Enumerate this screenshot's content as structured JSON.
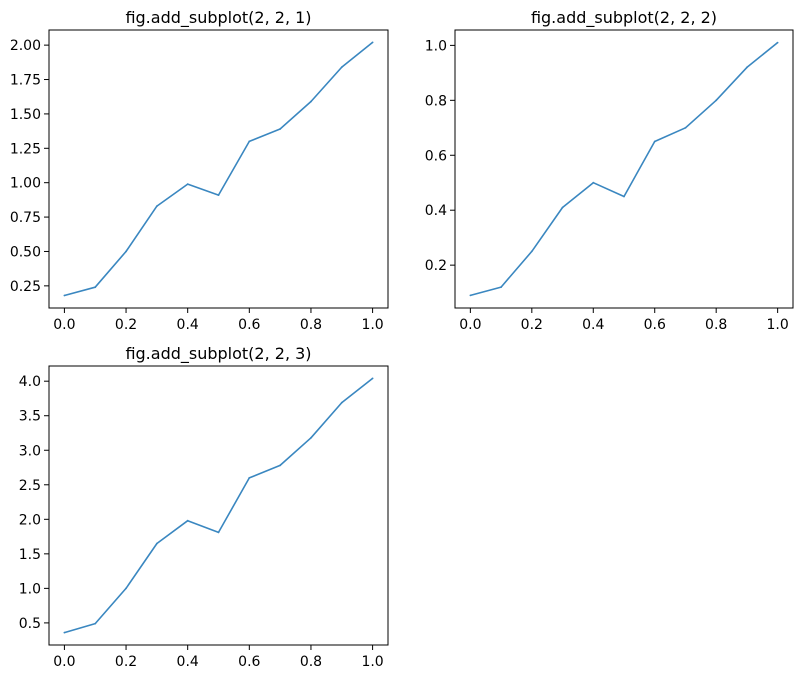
{
  "figure": {
    "background": "#ffffff",
    "line_color": "#3a87c0"
  },
  "chart_data": [
    {
      "type": "line",
      "title": "fig.add_subplot(2, 2, 1)",
      "xlabel": "",
      "ylabel": "",
      "x": [
        0.0,
        0.1,
        0.2,
        0.3,
        0.4,
        0.5,
        0.6,
        0.7,
        0.8,
        0.9,
        1.0
      ],
      "series": [
        {
          "values": [
            0.18,
            0.24,
            0.5,
            0.83,
            0.99,
            0.91,
            1.3,
            1.39,
            1.59,
            1.84,
            2.02
          ]
        }
      ],
      "xlim": [
        -0.05,
        1.05
      ],
      "ylim": [
        0.089,
        2.11
      ],
      "xticks": [
        "0.0",
        "0.2",
        "0.4",
        "0.6",
        "0.8",
        "1.0"
      ],
      "yticks": [
        "0.25",
        "0.50",
        "0.75",
        "1.00",
        "1.25",
        "1.50",
        "1.75",
        "2.00"
      ],
      "grid": false
    },
    {
      "type": "line",
      "title": "fig.add_subplot(2, 2, 2)",
      "xlabel": "",
      "ylabel": "",
      "x": [
        0.0,
        0.1,
        0.2,
        0.3,
        0.4,
        0.5,
        0.6,
        0.7,
        0.8,
        0.9,
        1.0
      ],
      "series": [
        {
          "values": [
            0.09,
            0.12,
            0.25,
            0.41,
            0.5,
            0.45,
            0.65,
            0.7,
            0.8,
            0.92,
            1.01
          ]
        }
      ],
      "xlim": [
        -0.05,
        1.05
      ],
      "ylim": [
        0.044,
        1.056
      ],
      "xticks": [
        "0.0",
        "0.2",
        "0.4",
        "0.6",
        "0.8",
        "1.0"
      ],
      "yticks": [
        "0.2",
        "0.4",
        "0.6",
        "0.8",
        "1.0"
      ],
      "grid": false
    },
    {
      "type": "line",
      "title": "fig.add_subplot(2, 2, 3)",
      "xlabel": "",
      "ylabel": "",
      "x": [
        0.0,
        0.1,
        0.2,
        0.3,
        0.4,
        0.5,
        0.6,
        0.7,
        0.8,
        0.9,
        1.0
      ],
      "series": [
        {
          "values": [
            0.36,
            0.49,
            1.0,
            1.65,
            1.98,
            1.81,
            2.6,
            2.78,
            3.18,
            3.69,
            4.04
          ]
        }
      ],
      "xlim": [
        -0.05,
        1.05
      ],
      "ylim": [
        0.18,
        4.22
      ],
      "xticks": [
        "0.0",
        "0.2",
        "0.4",
        "0.6",
        "0.8",
        "1.0"
      ],
      "yticks": [
        "0.5",
        "1.0",
        "1.5",
        "2.0",
        "2.5",
        "3.0",
        "3.5",
        "4.0"
      ],
      "grid": false
    }
  ]
}
